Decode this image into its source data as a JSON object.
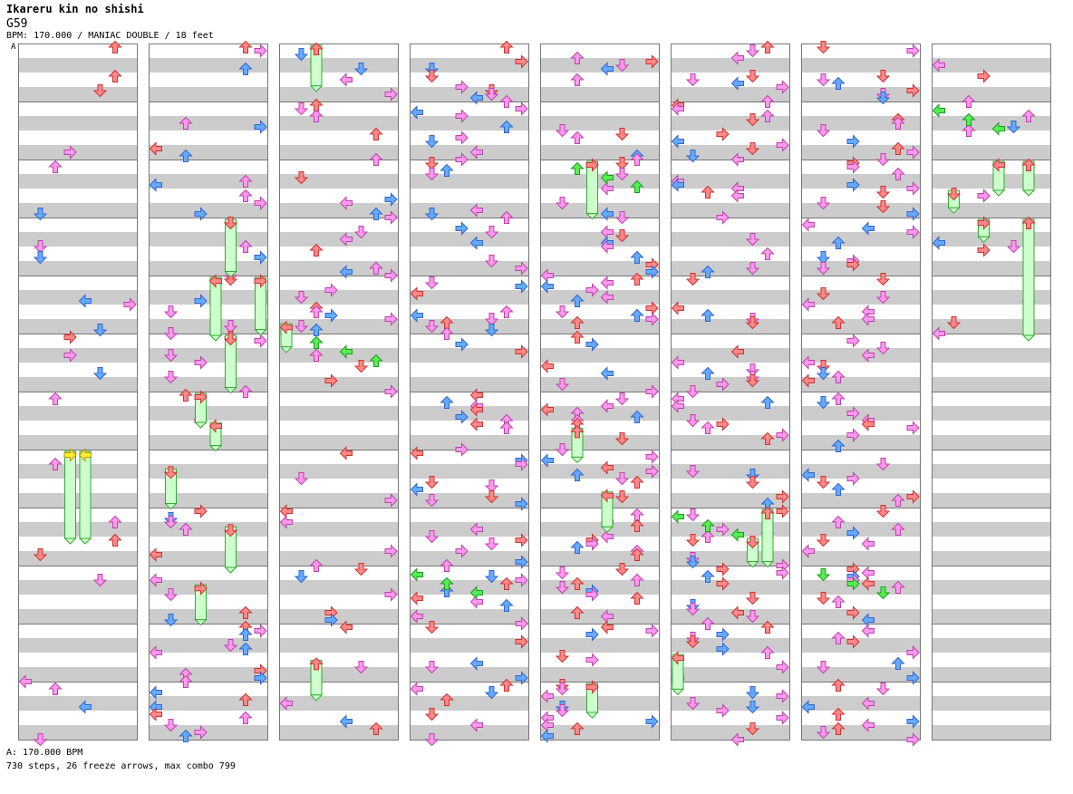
{
  "header": {
    "title": "Ikareru kin no shishi",
    "chart_id": "G59",
    "meta": "BPM: 170.000 / MANIAC DOUBLE / 18 feet"
  },
  "bpm_marker": "A",
  "footer": {
    "bpm_line": "A: 170.000 BPM",
    "stats": "730 steps, 26 freeze arrows, max combo 799"
  },
  "colors": {
    "band": "#cccccc",
    "border": "#777777",
    "quarter": "#ff8888",
    "eighth": "#66aaff",
    "sixteenth": "#ff99ee",
    "shock": "#55ee55",
    "freeze": "#ccffcc",
    "freeze_head_yellow": "#ffee33"
  },
  "chart_data": {
    "type": "step-chart",
    "columns": 8,
    "measures_per_column": 12,
    "lanes_per_row": 8,
    "steps": 730,
    "freeze_arrows": 26,
    "max_combo": 799,
    "bpm": 170.0,
    "difficulty": "MANIAC DOUBLE",
    "feet": 18,
    "freezes": [
      {
        "col": 0,
        "lane": 3,
        "start": 7.0,
        "len": 1.5,
        "head": "yellow"
      },
      {
        "col": 0,
        "lane": 4,
        "start": 7.0,
        "len": 1.5,
        "head": "yellow"
      },
      {
        "col": 1,
        "lane": 5,
        "start": 3.0,
        "len": 0.9
      },
      {
        "col": 1,
        "lane": 4,
        "start": 4.0,
        "len": 1.0
      },
      {
        "col": 1,
        "lane": 7,
        "start": 4.0,
        "len": 0.9
      },
      {
        "col": 1,
        "lane": 5,
        "start": 5.0,
        "len": 0.9
      },
      {
        "col": 1,
        "lane": 3,
        "start": 6.0,
        "len": 0.5
      },
      {
        "col": 1,
        "lane": 4,
        "start": 6.5,
        "len": 0.4
      },
      {
        "col": 1,
        "lane": 1,
        "start": 7.3,
        "len": 0.6
      },
      {
        "col": 1,
        "lane": 5,
        "start": 8.3,
        "len": 0.7
      },
      {
        "col": 1,
        "lane": 3,
        "start": 9.3,
        "len": 0.6
      },
      {
        "col": 2,
        "lane": 2,
        "start": 0.0,
        "len": 0.7
      },
      {
        "col": 2,
        "lane": 0,
        "start": 4.8,
        "len": 0.4
      },
      {
        "col": 2,
        "lane": 2,
        "start": 10.6,
        "len": 0.6
      },
      {
        "col": 4,
        "lane": 3,
        "start": 2.0,
        "len": 0.9
      },
      {
        "col": 4,
        "lane": 2,
        "start": 6.6,
        "len": 0.5
      },
      {
        "col": 4,
        "lane": 4,
        "start": 7.7,
        "len": 0.6
      },
      {
        "col": 4,
        "lane": 3,
        "start": 11.0,
        "len": 0.5
      },
      {
        "col": 5,
        "lane": 6,
        "start": 8.0,
        "len": 0.9
      },
      {
        "col": 5,
        "lane": 5,
        "start": 8.5,
        "len": 0.4
      },
      {
        "col": 5,
        "lane": 0,
        "start": 10.5,
        "len": 0.6
      },
      {
        "col": 7,
        "lane": 1,
        "start": 2.5,
        "len": 0.3
      },
      {
        "col": 7,
        "lane": 4,
        "start": 2.0,
        "len": 0.5
      },
      {
        "col": 7,
        "lane": 6,
        "start": 2.0,
        "len": 0.5
      },
      {
        "col": 7,
        "lane": 3,
        "start": 3.0,
        "len": 0.3
      },
      {
        "col": 7,
        "lane": 6,
        "start": 3.0,
        "len": 2.0
      }
    ]
  }
}
